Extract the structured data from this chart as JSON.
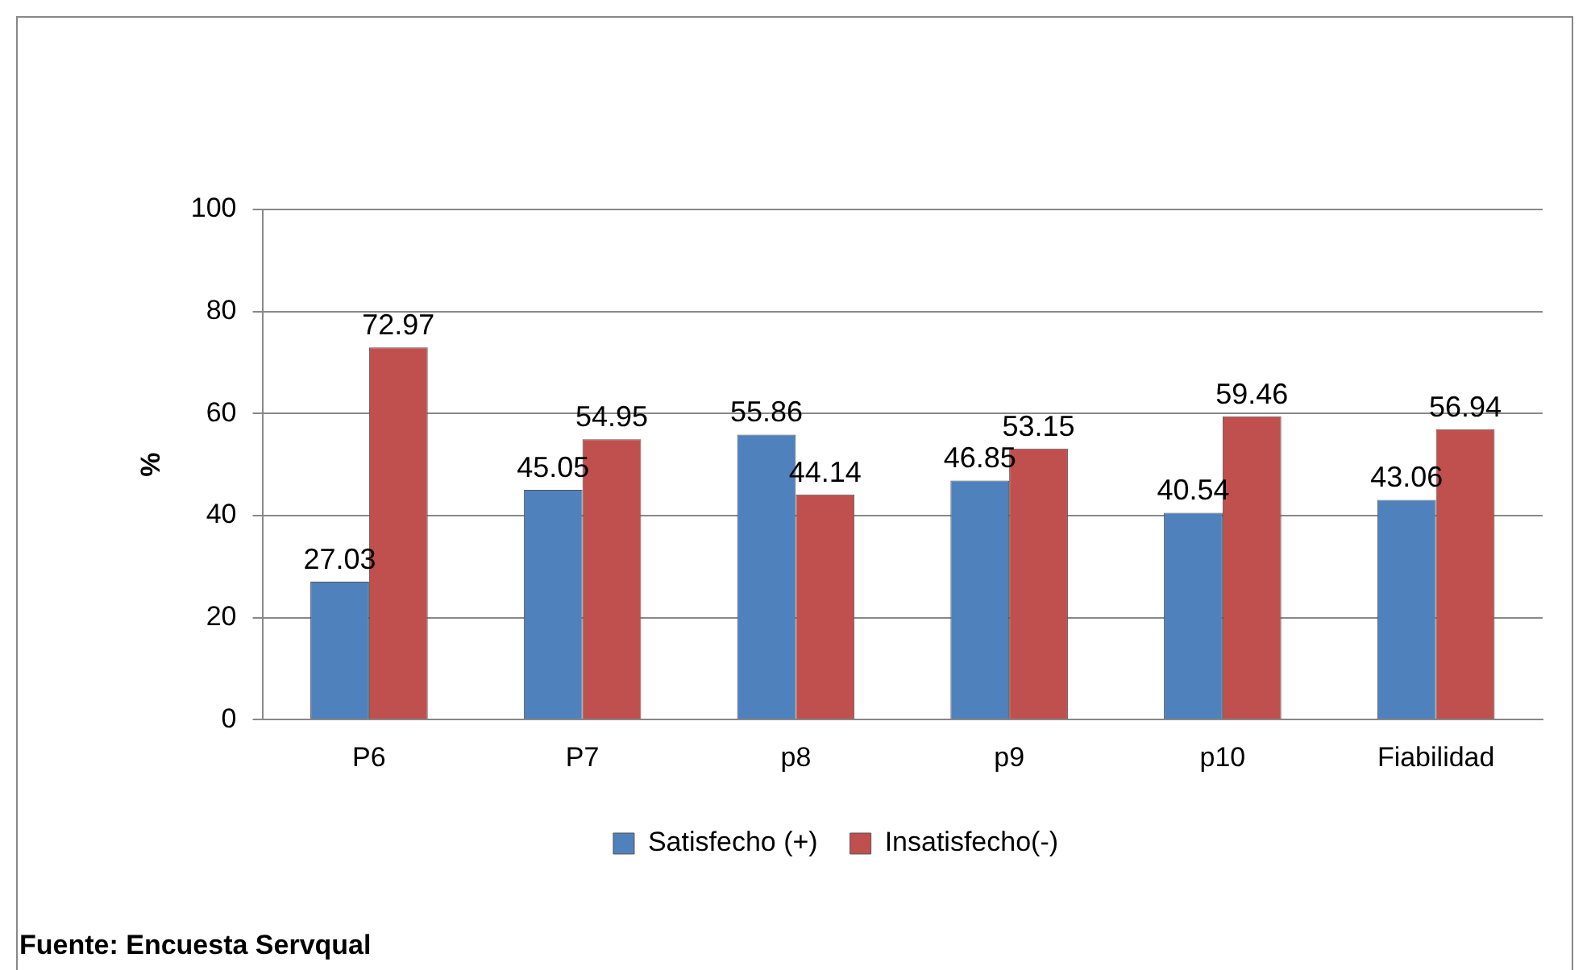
{
  "chart_data": {
    "type": "bar",
    "ylabel": "%",
    "categories": [
      "P6",
      "P7",
      "p8",
      "p9",
      "p10",
      "Fiabilidad"
    ],
    "series": [
      {
        "name": "Satisfecho (+)",
        "color": "#4f81bd",
        "values": [
          27.03,
          45.05,
          55.86,
          46.85,
          40.54,
          43.06
        ]
      },
      {
        "name": "Insatisfecho(-)",
        "color": "#c0504d",
        "values": [
          72.97,
          54.95,
          44.14,
          53.15,
          59.46,
          56.94
        ]
      }
    ],
    "ylim": [
      0,
      100
    ],
    "yticks": [
      0,
      20,
      40,
      60,
      80,
      100
    ],
    "grid": "y",
    "legend": "bottom",
    "data_labels": true,
    "annotations": [
      "Fuente: Encuesta Servqual"
    ]
  }
}
